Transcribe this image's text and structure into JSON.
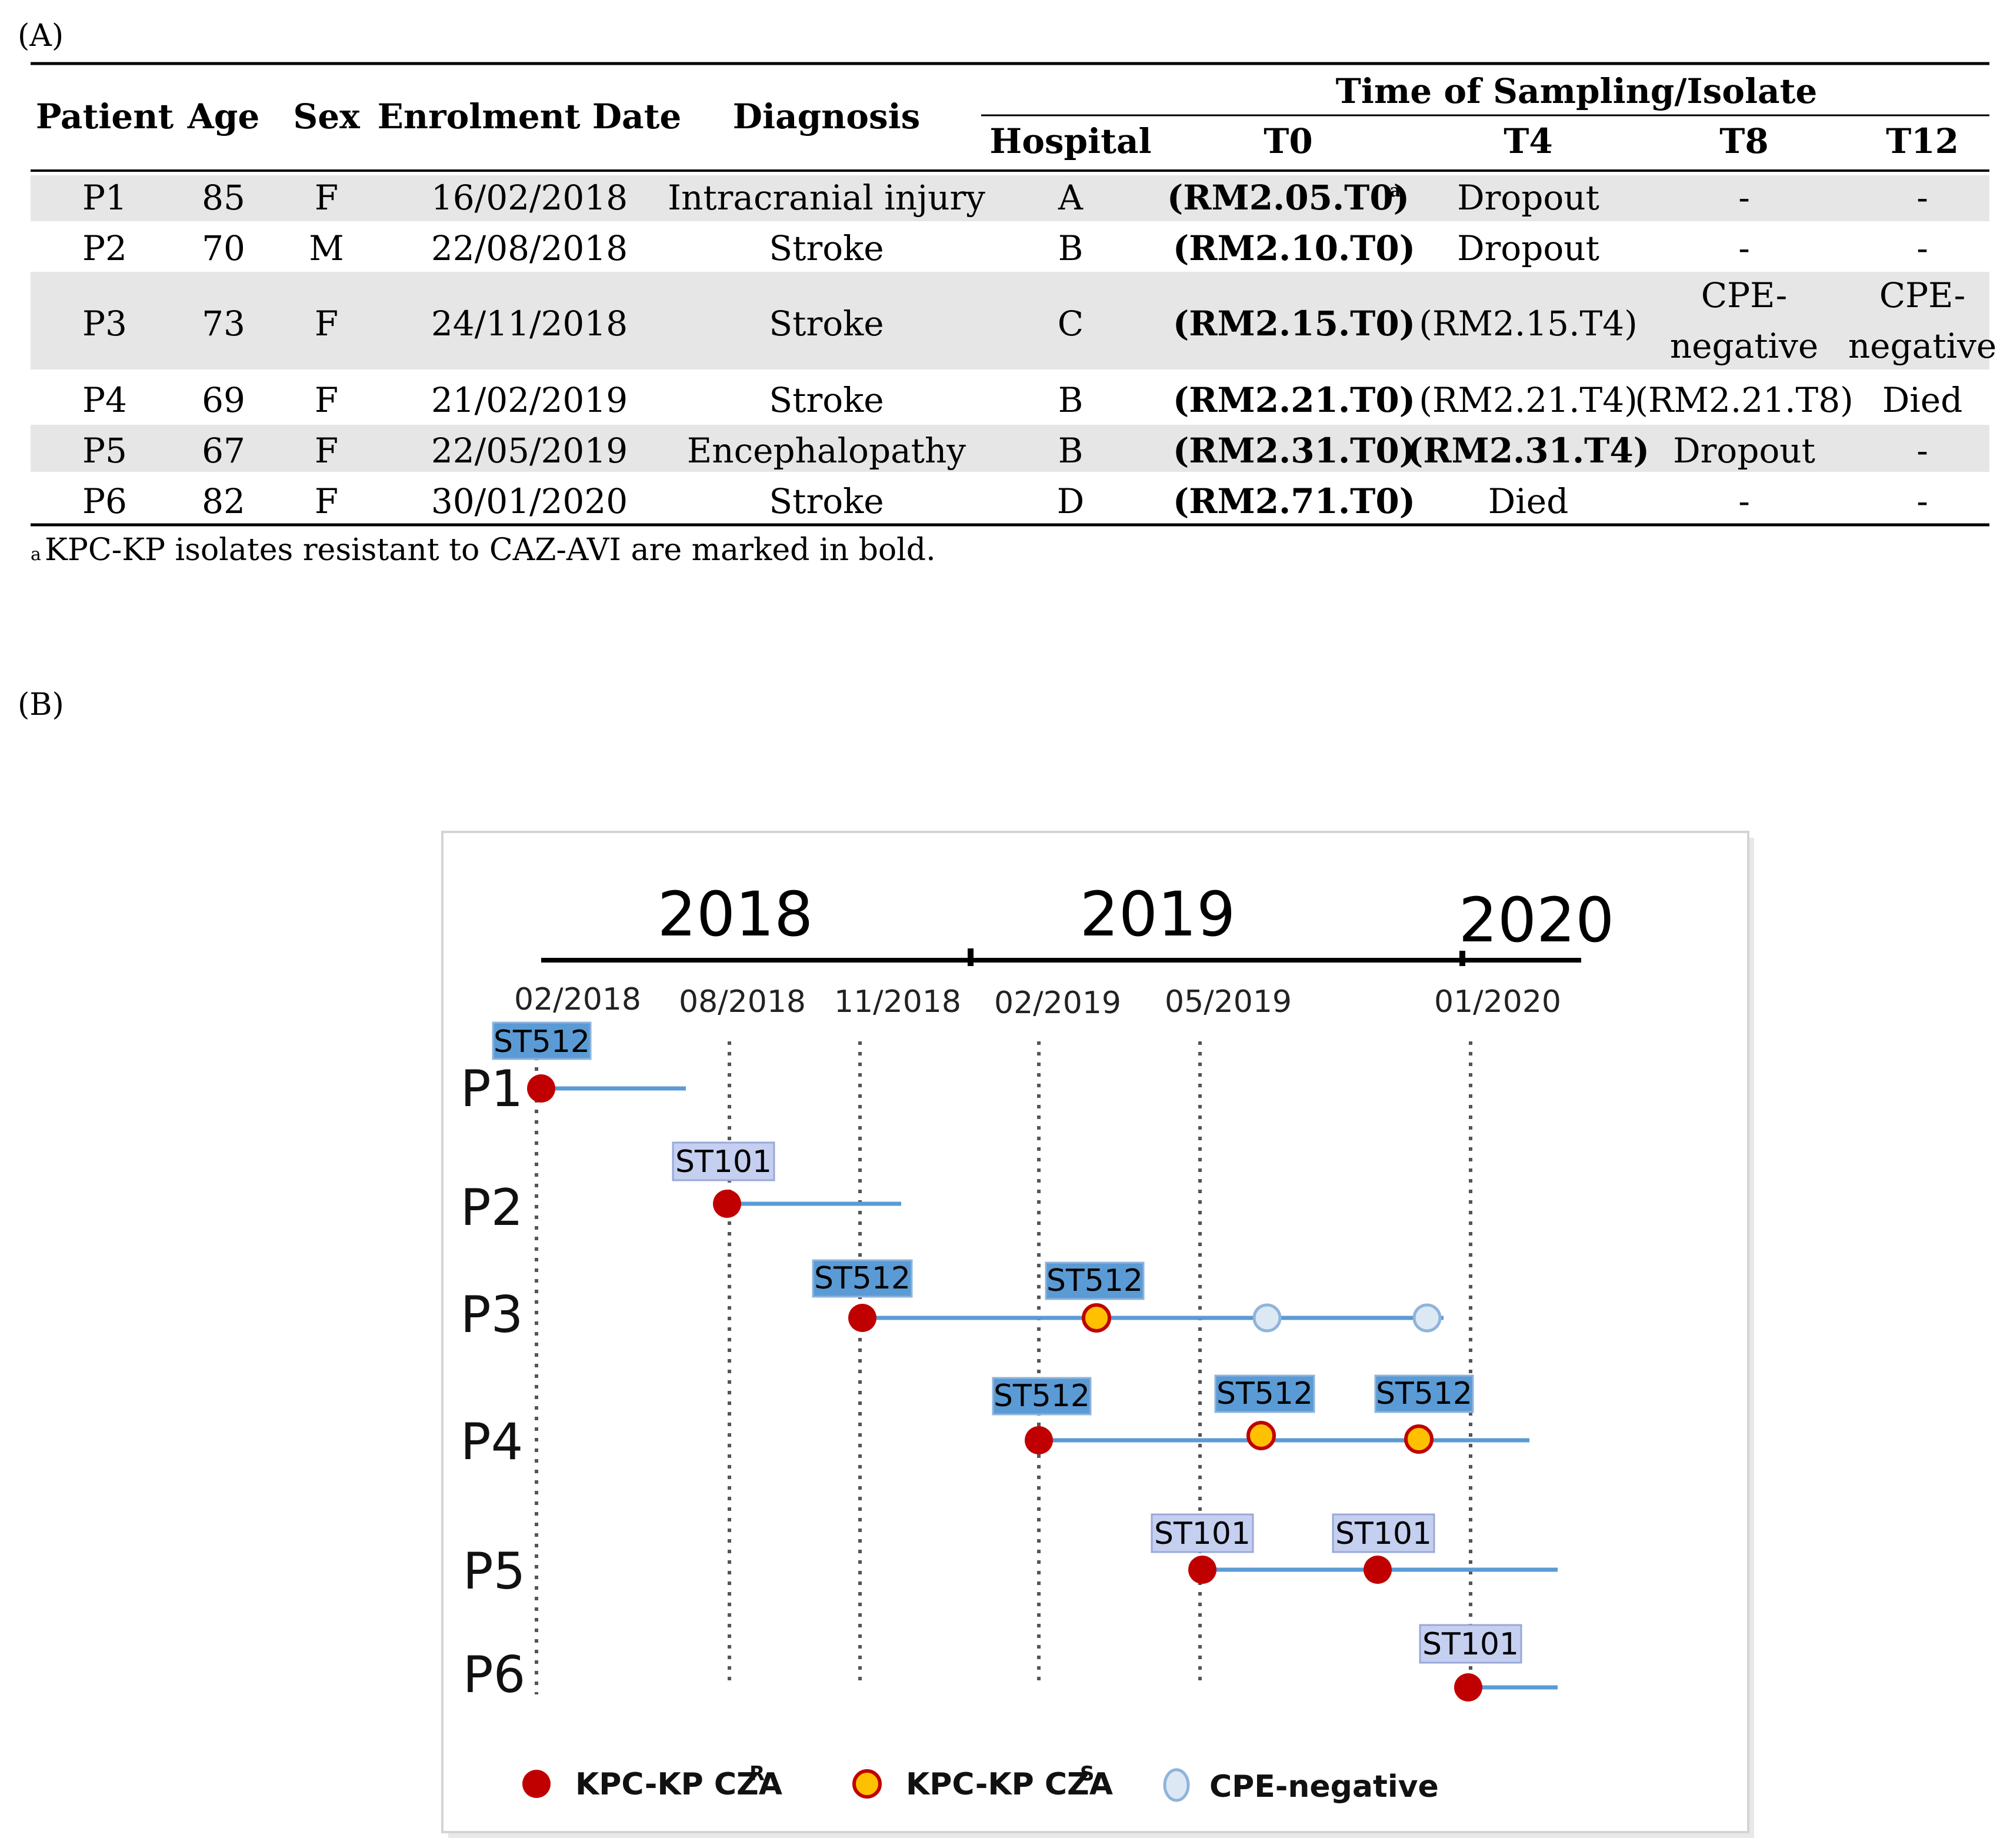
{
  "panel_a": {
    "label": "(A)",
    "headers": {
      "patient": "Patient",
      "age": "Age",
      "sex": "Sex",
      "enrolment_date": "Enrolment Date",
      "diagnosis": "Diagnosis",
      "time_group": "Time of Sampling/Isolate",
      "hospital": "Hospital",
      "t0": "T0",
      "t4": "T4",
      "t8": "T8",
      "t12": "T12"
    },
    "rows": [
      {
        "patient": "P1",
        "age": "85",
        "sex": "F",
        "date": "16/02/2018",
        "diagnosis": "Intracranial injury",
        "hospital": "A",
        "t0": "(RM2.05.T0)",
        "t0_sup": "a",
        "t4": "Dropout",
        "t8": "-",
        "t12": "-",
        "shaded": true
      },
      {
        "patient": "P2",
        "age": "70",
        "sex": "M",
        "date": "22/08/2018",
        "diagnosis": "Stroke",
        "hospital": "B",
        "t0": "(RM2.10.T0)",
        "t4": "Dropout",
        "t8": "-",
        "t12": "-",
        "shaded": false
      },
      {
        "patient": "P3",
        "age": "73",
        "sex": "F",
        "date": "24/11/2018",
        "diagnosis": "Stroke",
        "hospital": "C",
        "t0": "(RM2.15.T0)",
        "t4": "(RM2.15.T4)",
        "t8_line1": "CPE-",
        "t8_line2": "negative",
        "t12_line1": "CPE-",
        "t12_line2": "negative",
        "shaded": true
      },
      {
        "patient": "P4",
        "age": "69",
        "sex": "F",
        "date": "21/02/2019",
        "diagnosis": "Stroke",
        "hospital": "B",
        "t0": "(RM2.21.T0)",
        "t4": "(RM2.21.T4)",
        "t8": "(RM2.21.T8)",
        "t12": "Died",
        "shaded": false
      },
      {
        "patient": "P5",
        "age": "67",
        "sex": "F",
        "date": "22/05/2019",
        "diagnosis": "Encephalopathy",
        "hospital": "B",
        "t0": "(RM2.31.T0)",
        "t4": "(RM2.31.T4)",
        "t8": "Dropout",
        "t12": "-",
        "shaded": true
      },
      {
        "patient": "P6",
        "age": "82",
        "sex": "F",
        "date": "30/01/2020",
        "diagnosis": "Stroke",
        "hospital": "D",
        "t0": "(RM2.71.T0)",
        "t4": "Died",
        "t8": "-",
        "t12": "-",
        "shaded": false
      }
    ],
    "footnote_sup": "a",
    "footnote": "KPC-KP isolates resistant to CAZ-AVI are marked in bold."
  },
  "panel_b": {
    "label": "(B)",
    "years": [
      "2018",
      "2019",
      "2020"
    ],
    "dates": [
      "02/2018",
      "08/2018",
      "11/2018",
      "02/2019",
      "05/2019",
      "01/2020"
    ],
    "patients": [
      "P1",
      "P2",
      "P3",
      "P4",
      "P5",
      "P6"
    ],
    "isolates": [
      {
        "patient": "P1",
        "st": "ST512",
        "status": "R"
      },
      {
        "patient": "P2",
        "st": "ST101",
        "status": "R"
      },
      {
        "patient": "P3",
        "st": "ST512",
        "status": "R"
      },
      {
        "patient": "P3",
        "st": "ST512",
        "status": "S"
      },
      {
        "patient": "P3",
        "st": "",
        "status": "N"
      },
      {
        "patient": "P3",
        "st": "",
        "status": "N"
      },
      {
        "patient": "P4",
        "st": "ST512",
        "status": "R"
      },
      {
        "patient": "P4",
        "st": "ST512",
        "status": "S"
      },
      {
        "patient": "P4",
        "st": "ST512",
        "status": "S"
      },
      {
        "patient": "P5",
        "st": "ST101",
        "status": "R"
      },
      {
        "patient": "P5",
        "st": "ST101",
        "status": "R"
      },
      {
        "patient": "P6",
        "st": "ST101",
        "status": "R"
      }
    ],
    "legend": [
      {
        "key": "R",
        "label": "KPC-KP CZA",
        "sup": "R"
      },
      {
        "key": "S",
        "label": "KPC-KP CZA",
        "sup": "S"
      },
      {
        "key": "N",
        "label": "CPE-negative",
        "sup": ""
      }
    ],
    "colors": {
      "resistant": "#c00000",
      "susceptible": "#ffc000",
      "negative": "#dce9f5",
      "timeline": "#5b9bd5",
      "st512": "#5b9bd5",
      "st101": "#c5cff0",
      "table_shade": "#e6e6e6"
    }
  }
}
